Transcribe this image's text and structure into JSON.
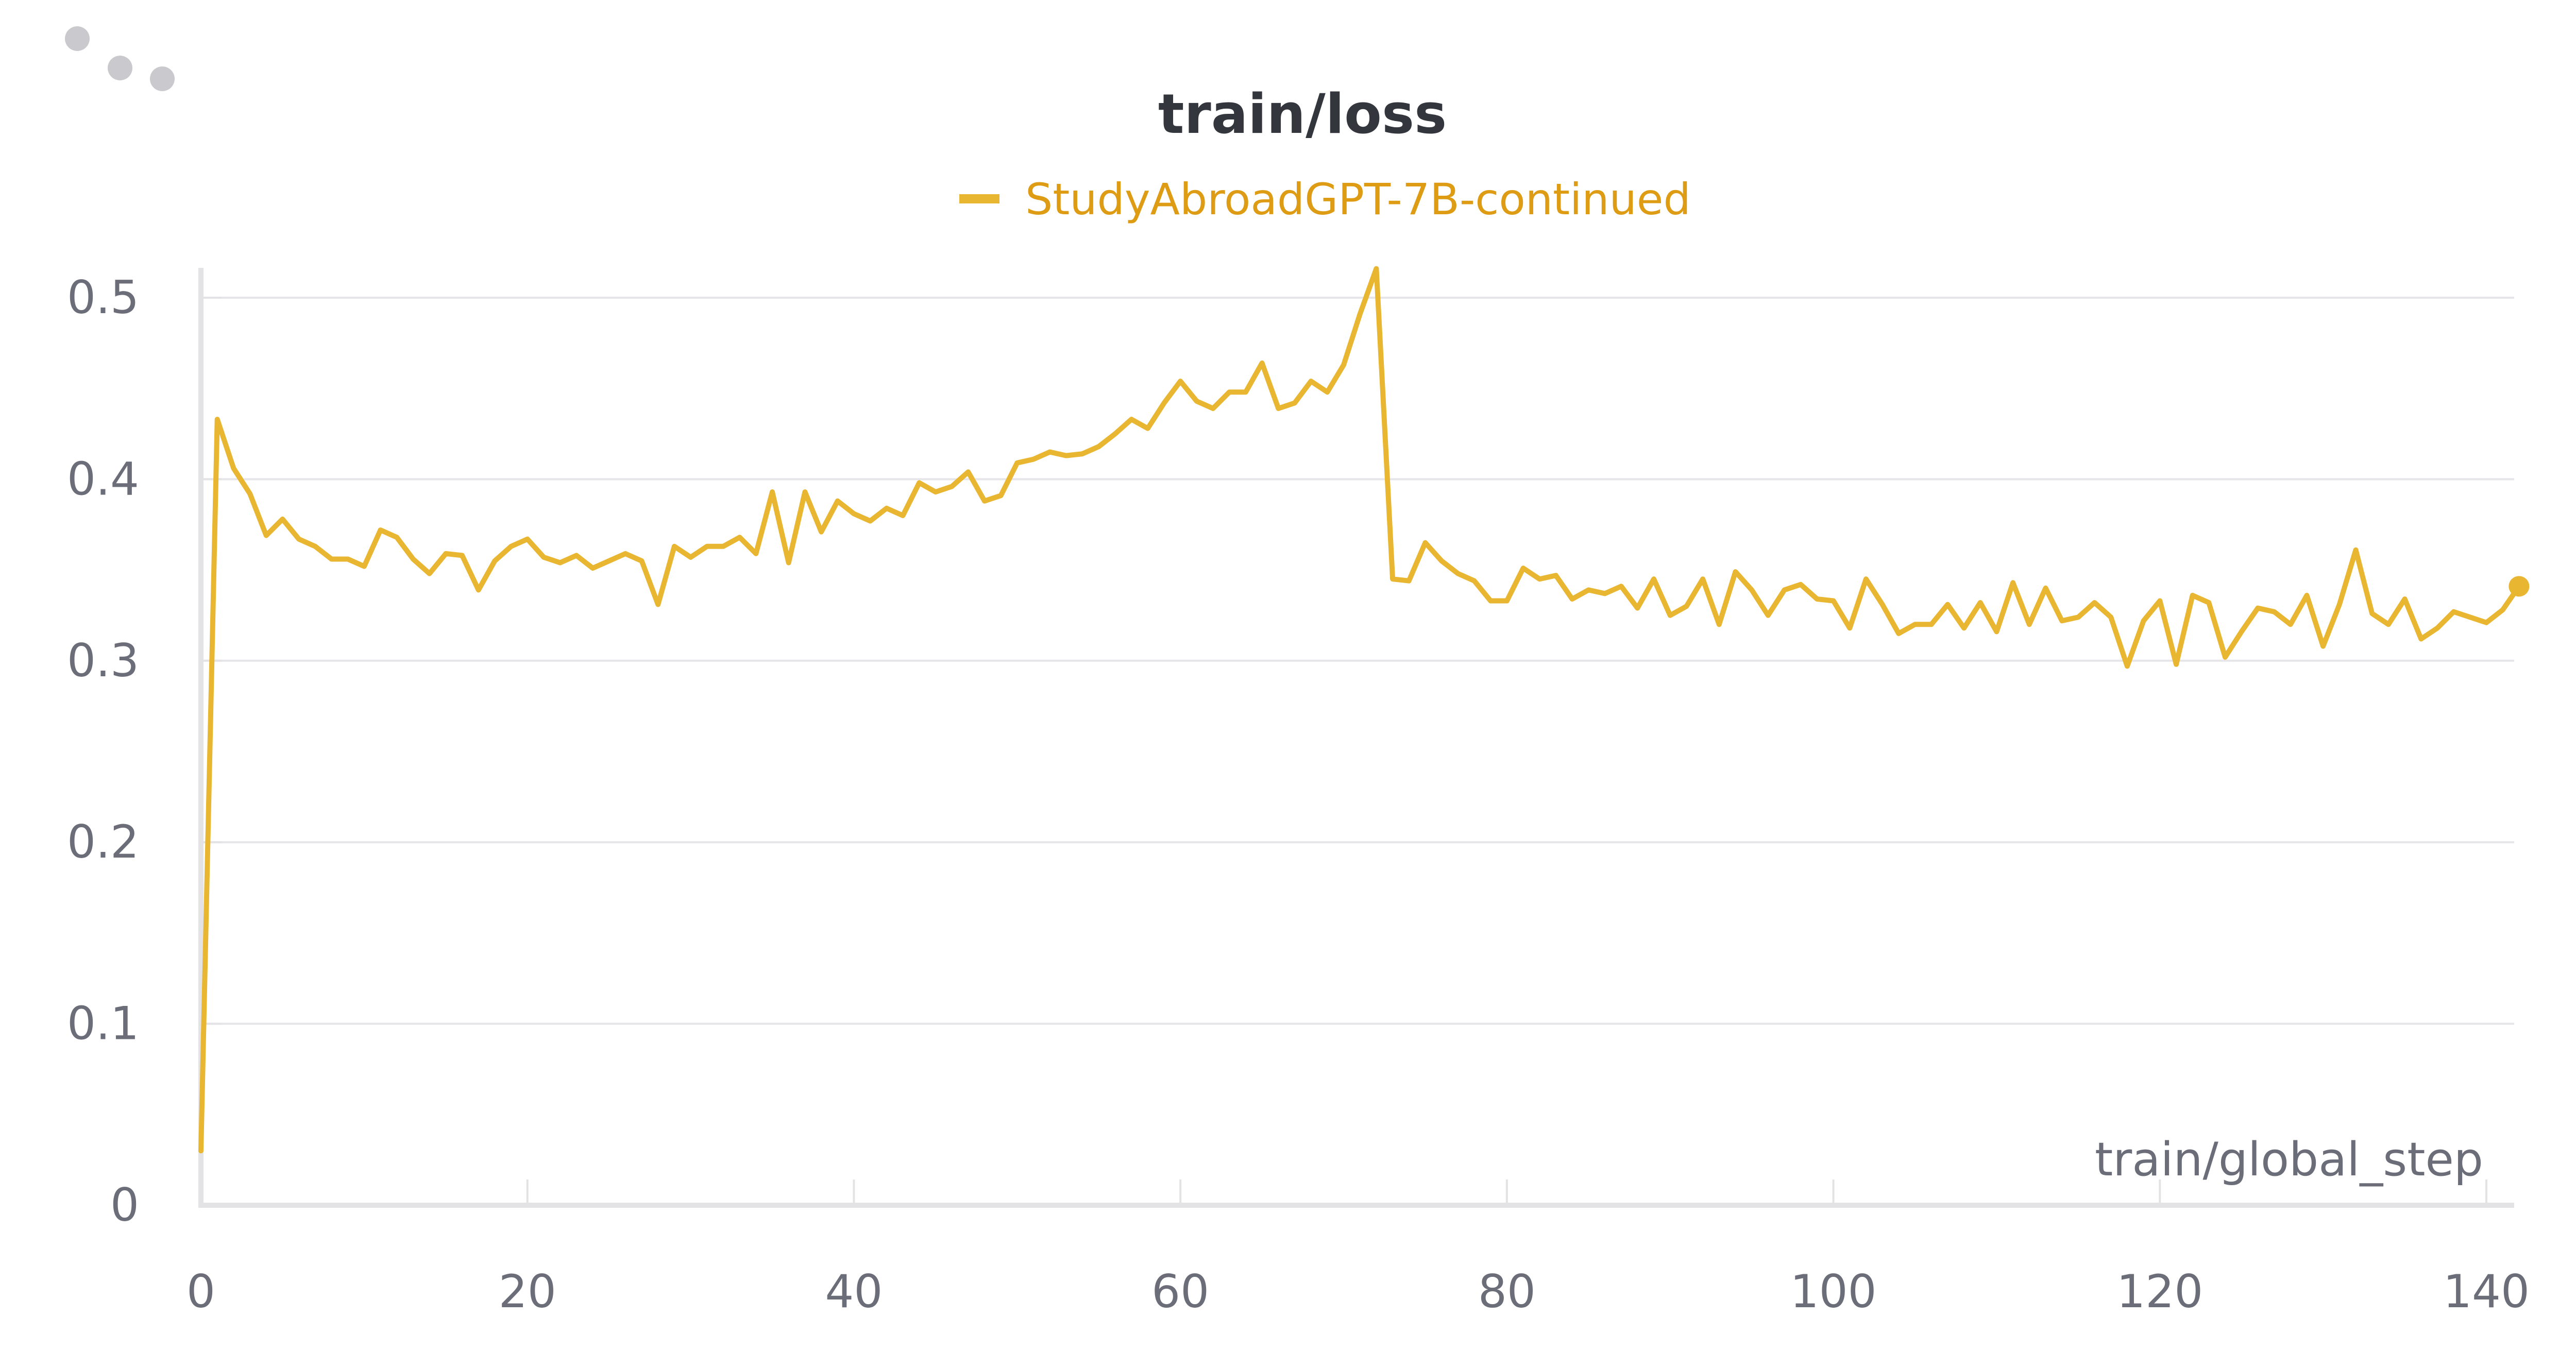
{
  "panel": {
    "title": "train/loss",
    "colors": {
      "series": "#e9b632",
      "legend_text": "#de9c14",
      "title": "#34363d",
      "ticks": "#6b6d78",
      "grid": "#e6e6e9"
    },
    "icons": {
      "drag_handle": "drag-handle-dots-icon"
    }
  },
  "chart_data": {
    "type": "line",
    "title": "train/loss",
    "xlabel": "train/global_step",
    "ylabel": "",
    "xlim": [
      0,
      142
    ],
    "ylim": [
      0,
      0.52
    ],
    "xticks": [
      0,
      20,
      40,
      60,
      80,
      100,
      120,
      140
    ],
    "xtick_labels": [
      "0",
      "20",
      "40",
      "60",
      "80",
      "100",
      "120",
      "140"
    ],
    "yticks": [
      0,
      0.1,
      0.2,
      0.3,
      0.4,
      0.5
    ],
    "ytick_labels": [
      "0",
      "0.1",
      "0.2",
      "0.3",
      "0.4",
      "0.5"
    ],
    "grid": true,
    "legend_position": "top-center",
    "series": [
      {
        "name": "StudyAbroadGPT-7B-continued",
        "color": "#e9b632",
        "x": [
          0,
          1,
          2,
          3,
          4,
          5,
          6,
          7,
          8,
          9,
          10,
          11,
          12,
          13,
          14,
          15,
          16,
          17,
          18,
          19,
          20,
          21,
          22,
          23,
          24,
          25,
          26,
          27,
          28,
          29,
          30,
          31,
          32,
          33,
          34,
          35,
          36,
          37,
          38,
          39,
          40,
          41,
          42,
          43,
          44,
          45,
          46,
          47,
          48,
          49,
          50,
          51,
          52,
          53,
          54,
          55,
          56,
          57,
          58,
          59,
          60,
          61,
          62,
          63,
          64,
          65,
          66,
          67,
          68,
          69,
          70,
          71,
          72,
          73,
          74,
          75,
          76,
          77,
          78,
          79,
          80,
          81,
          82,
          83,
          84,
          85,
          86,
          87,
          88,
          89,
          90,
          91,
          92,
          93,
          94,
          95,
          96,
          97,
          98,
          99,
          100,
          101,
          102,
          103,
          104,
          105,
          106,
          107,
          108,
          109,
          110,
          111,
          112,
          113,
          114,
          115,
          116,
          117,
          118,
          119,
          120,
          121,
          122,
          123,
          124,
          125,
          126,
          127,
          128,
          129,
          130,
          131,
          132,
          133,
          134,
          135,
          136,
          137,
          138,
          139,
          140,
          141,
          142
        ],
        "y": [
          0.03,
          0.433,
          0.406,
          0.392,
          0.369,
          0.378,
          0.367,
          0.363,
          0.356,
          0.356,
          0.352,
          0.372,
          0.368,
          0.356,
          0.348,
          0.359,
          0.358,
          0.339,
          0.355,
          0.363,
          0.367,
          0.357,
          0.354,
          0.358,
          0.351,
          0.355,
          0.359,
          0.355,
          0.331,
          0.363,
          0.357,
          0.363,
          0.363,
          0.368,
          0.359,
          0.393,
          0.354,
          0.393,
          0.371,
          0.388,
          0.381,
          0.377,
          0.384,
          0.38,
          0.398,
          0.393,
          0.396,
          0.404,
          0.388,
          0.391,
          0.409,
          0.411,
          0.415,
          0.413,
          0.414,
          0.418,
          0.425,
          0.433,
          0.428,
          0.442,
          0.454,
          0.443,
          0.439,
          0.448,
          0.448,
          0.464,
          0.439,
          0.442,
          0.454,
          0.448,
          0.463,
          0.491,
          0.516,
          0.345,
          0.344,
          0.365,
          0.355,
          0.348,
          0.344,
          0.333,
          0.333,
          0.351,
          0.345,
          0.347,
          0.334,
          0.339,
          0.337,
          0.341,
          0.329,
          0.345,
          0.325,
          0.33,
          0.345,
          0.32,
          0.349,
          0.339,
          0.325,
          0.339,
          0.342,
          0.334,
          0.333,
          0.318,
          0.345,
          0.331,
          0.315,
          0.32,
          0.32,
          0.331,
          0.318,
          0.332,
          0.316,
          0.343,
          0.32,
          0.34,
          0.322,
          0.324,
          0.332,
          0.324,
          0.297,
          0.322,
          0.333,
          0.298,
          0.336,
          0.332,
          0.302,
          0.316,
          0.329,
          0.327,
          0.32,
          0.336,
          0.308,
          0.331,
          0.361,
          0.326,
          0.32,
          0.334,
          0.312,
          0.318,
          0.327,
          0.324,
          0.321,
          0.328,
          0.341
        ]
      }
    ]
  }
}
